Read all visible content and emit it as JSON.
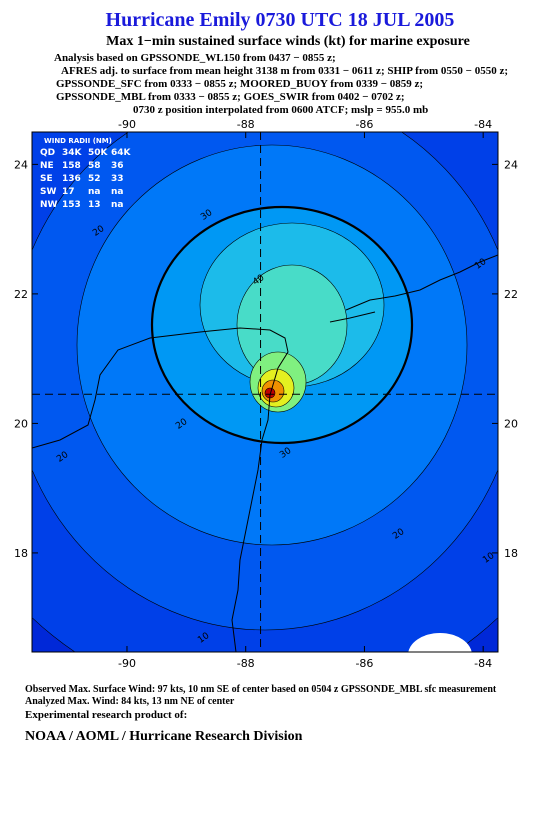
{
  "header": {
    "title": "Hurricane Emily 0730 UTC 18 JUL 2005",
    "subtitle": "Max 1−min sustained surface winds (kt) for marine exposure",
    "analysis_lines": [
      "Analysis based on  GPSSONDE_WL150 from 0437 − 0855 z;",
      "AFRES adj. to surface from mean height 3138 m from 0331 − 0611 z;  SHIP from 0550 − 0550 z;",
      "GPSSONDE_SFC from 0333 − 0855 z;  MOORED_BUOY from 0339 − 0859 z;",
      "GPSSONDE_MBL from 0333 − 0855 z;  GOES_SWIR from 0402 − 0702 z;",
      "0730 z position interpolated from 0600 ATCF; mslp = 955.0 mb"
    ]
  },
  "map": {
    "xlim": [
      -91.6,
      -83.75
    ],
    "ylim": [
      16.47,
      24.5
    ],
    "xticks": [
      -90,
      -88,
      -86,
      -84
    ],
    "yticks": [
      24,
      22,
      20,
      18
    ],
    "center": [
      -87.75,
      20.45
    ],
    "contour_labels": [
      "30",
      "20",
      "40",
      "10",
      "20",
      "20",
      "30",
      "20",
      "10",
      "10"
    ],
    "wind_radii": {
      "title": "WIND RADII (NM)",
      "columns": [
        "QD",
        "34K",
        "50K",
        "64K"
      ],
      "rows": [
        [
          "NE",
          "158",
          "58",
          "36"
        ],
        [
          "SE",
          "136",
          "52",
          "33"
        ],
        [
          "SW",
          "17",
          "na",
          "na"
        ],
        [
          "NW",
          "153",
          "13",
          "na"
        ]
      ]
    }
  },
  "footer": {
    "lines": [
      "Observed Max. Surface Wind: 97 kts, 10 nm SE of center based on 0504 z GPSSONDE_MBL sfc measurement",
      "Analyzed Max. Wind: 84 kts, 13 nm NE of center",
      "Experimental research product of:"
    ],
    "credit": "NOAA / AOML / Hurricane Research Division"
  }
}
